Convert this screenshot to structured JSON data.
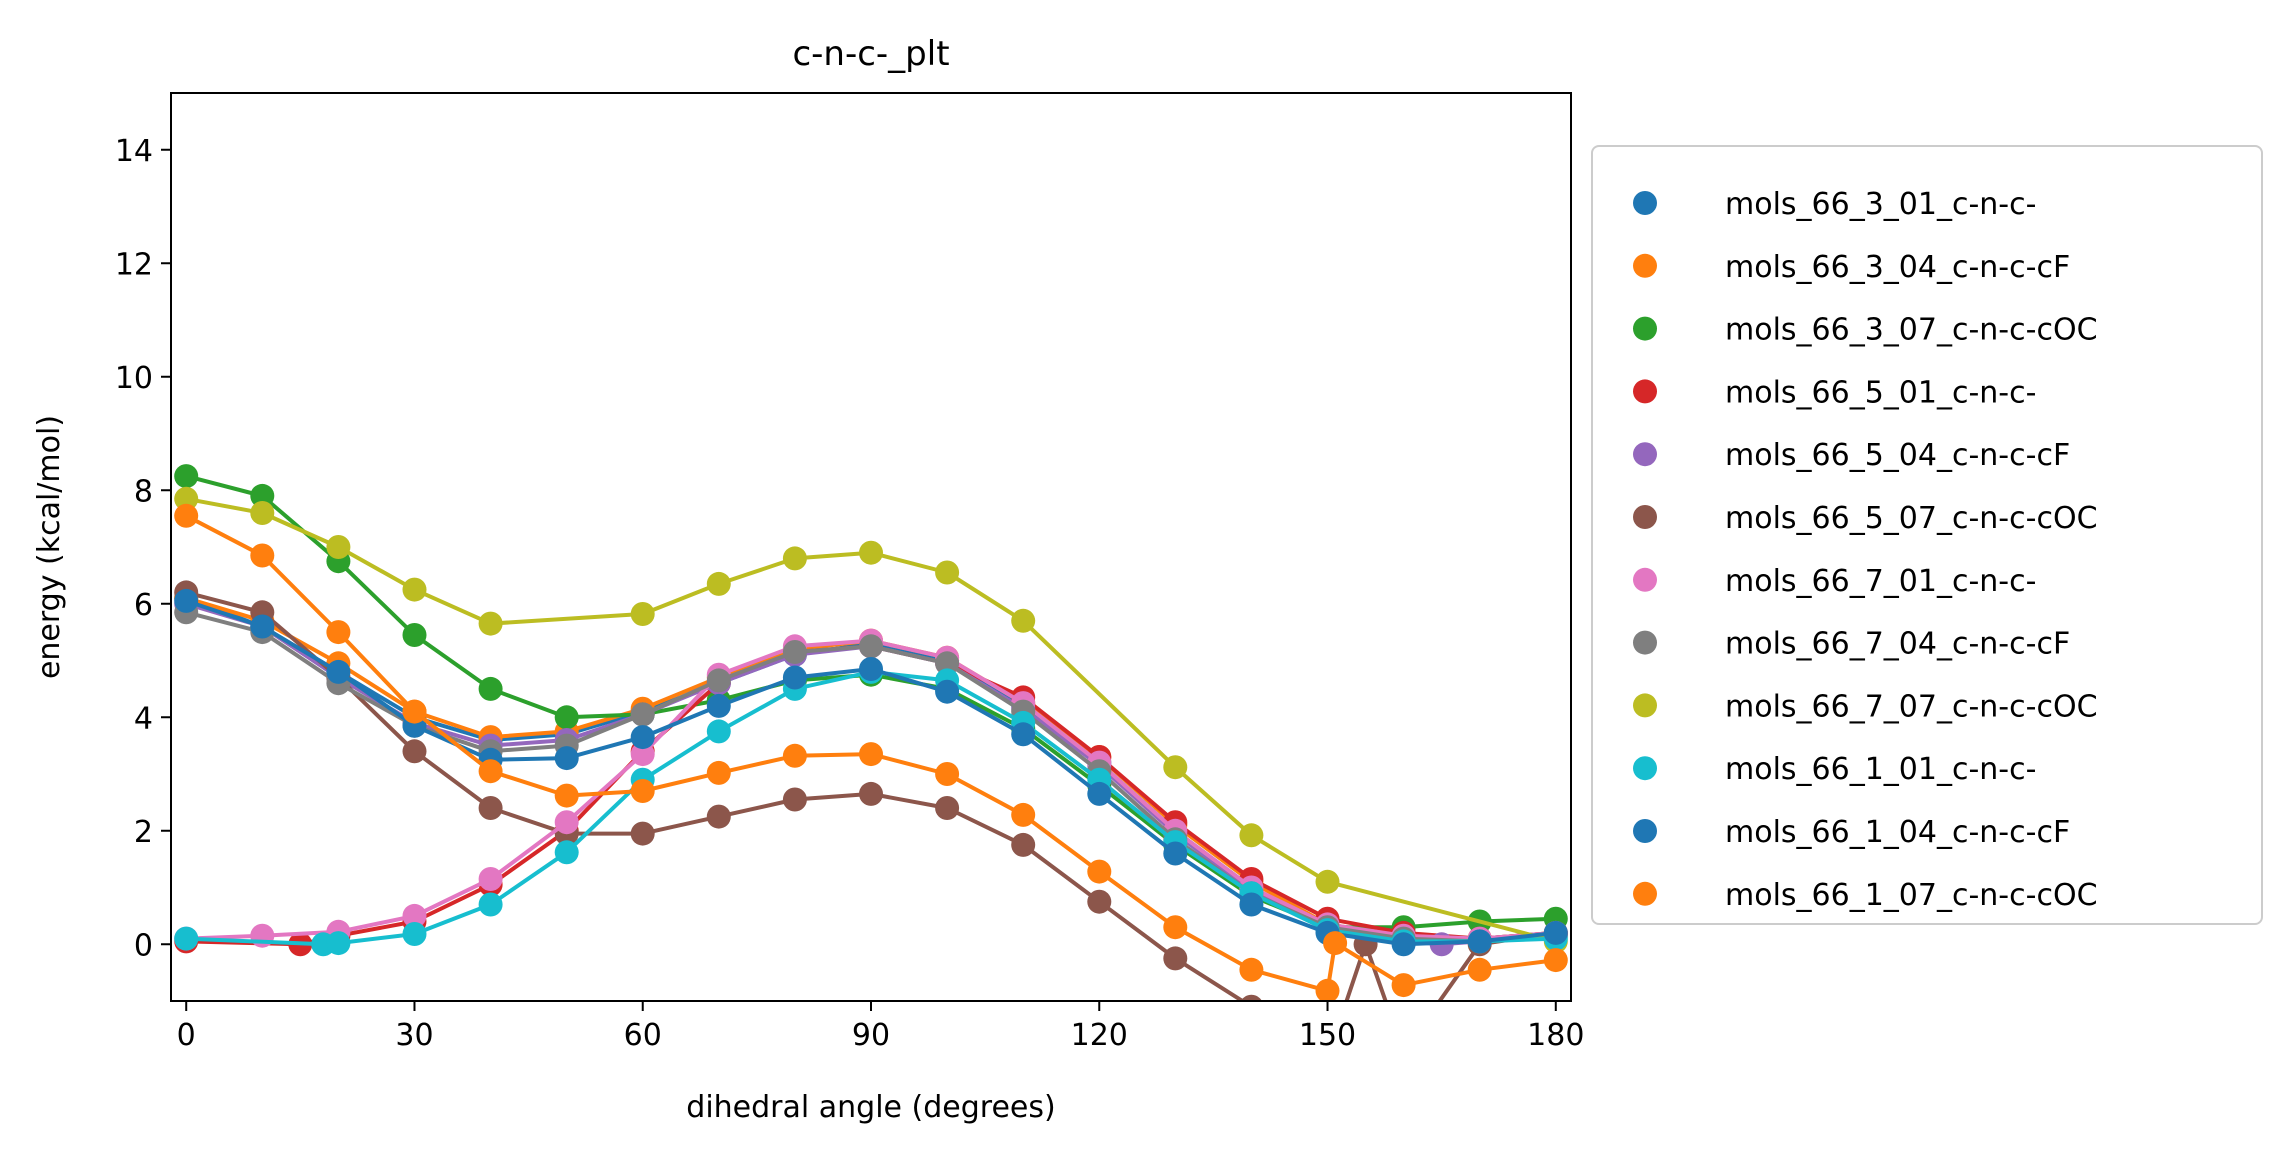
{
  "chart_data": {
    "type": "line",
    "title": "c-n-c-_plt",
    "xlabel": "dihedral angle (degrees)",
    "ylabel": "energy (kcal/mol)",
    "xlim": [
      -2,
      182
    ],
    "ylim": [
      -1,
      15
    ],
    "xticks": [
      0,
      30,
      60,
      90,
      120,
      150,
      180
    ],
    "yticks": [
      0,
      2,
      4,
      6,
      8,
      10,
      12,
      14
    ],
    "grid": false,
    "legend": "outside-right",
    "series": [
      {
        "name": "mols_66_3_01_c-n-c-",
        "color": "#1f77b4",
        "x": [
          0,
          10,
          20,
          30,
          40,
          50,
          60,
          70,
          80,
          90,
          100,
          110,
          120,
          130,
          140,
          150,
          160,
          170,
          180
        ],
        "y": [
          6.1,
          5.6,
          4.8,
          4.0,
          3.6,
          3.7,
          4.1,
          4.6,
          5.1,
          5.3,
          5.0,
          4.2,
          3.2,
          2.0,
          1.0,
          0.3,
          0.1,
          0.1,
          0.2
        ]
      },
      {
        "name": "mols_66_3_04_c-n-c-cF",
        "color": "#ff7f0e",
        "x": [
          0,
          10,
          20,
          30,
          40,
          50,
          60,
          70,
          80,
          90,
          100,
          110,
          120,
          130,
          140,
          150,
          160,
          170,
          180
        ],
        "y": [
          6.1,
          5.7,
          4.95,
          4.1,
          3.65,
          3.75,
          4.15,
          4.7,
          5.2,
          5.35,
          5.05,
          4.25,
          3.3,
          2.1,
          1.1,
          0.35,
          0.15,
          0.1,
          0.2
        ]
      },
      {
        "name": "mols_66_3_07_c-n-c-cOC",
        "color": "#2ca02c",
        "x": [
          0,
          10,
          20,
          30,
          40,
          50,
          60,
          70,
          80,
          90,
          100,
          110,
          120,
          130,
          140,
          150,
          160,
          170,
          180
        ],
        "y": [
          8.25,
          7.9,
          6.75,
          5.45,
          4.5,
          4.0,
          4.05,
          4.3,
          4.65,
          4.75,
          4.5,
          3.8,
          2.8,
          1.75,
          0.85,
          0.3,
          0.3,
          0.4,
          0.45
        ]
      },
      {
        "name": "mols_66_5_01_c-n-c-",
        "color": "#d62728",
        "x": [
          0,
          15,
          20,
          30,
          40,
          50,
          60,
          70,
          80,
          90,
          100,
          110,
          120,
          130,
          140,
          150,
          160,
          170,
          180
        ],
        "y": [
          0.05,
          0.0,
          0.15,
          0.4,
          1.05,
          2.0,
          3.4,
          4.6,
          5.15,
          5.25,
          4.95,
          4.35,
          3.3,
          2.15,
          1.15,
          0.45,
          0.2,
          0.1,
          0.2
        ]
      },
      {
        "name": "mols_66_5_04_c-n-c-cF",
        "color": "#9467bd",
        "x": [
          0,
          10,
          20,
          30,
          40,
          50,
          60,
          70,
          80,
          90,
          100,
          110,
          120,
          130,
          140,
          150,
          160,
          165,
          170,
          180
        ],
        "y": [
          6.0,
          5.6,
          4.7,
          3.9,
          3.5,
          3.6,
          4.05,
          4.6,
          5.1,
          5.25,
          4.95,
          4.15,
          3.15,
          1.95,
          0.95,
          0.3,
          0.05,
          0.0,
          0.05,
          0.15
        ]
      },
      {
        "name": "mols_66_5_07_c-n-c-cOC",
        "color": "#8c564b",
        "x": [
          0,
          10,
          20,
          30,
          40,
          50,
          60,
          70,
          80,
          90,
          100,
          110,
          120,
          130,
          140,
          150,
          155,
          160,
          170,
          180
        ],
        "y": [
          6.2,
          5.85,
          4.7,
          3.4,
          2.4,
          1.95,
          1.95,
          2.25,
          2.55,
          2.65,
          2.4,
          1.75,
          0.75,
          -0.25,
          -1.1,
          -2.0,
          0.0,
          -1.9,
          0.0,
          0.2
        ]
      },
      {
        "name": "mols_66_7_01_c-n-c-",
        "color": "#e377c2",
        "x": [
          0,
          10,
          20,
          30,
          40,
          50,
          60,
          70,
          80,
          90,
          100,
          110,
          120,
          130,
          140,
          150,
          160,
          170,
          180
        ],
        "y": [
          0.1,
          0.15,
          0.22,
          0.5,
          1.15,
          2.15,
          3.35,
          4.75,
          5.25,
          5.35,
          5.05,
          4.25,
          3.2,
          2.0,
          1.0,
          0.35,
          0.15,
          0.1,
          0.2
        ]
      },
      {
        "name": "mols_66_7_04_c-n-c-cF",
        "color": "#7f7f7f",
        "x": [
          0,
          10,
          20,
          30,
          40,
          50,
          60,
          70,
          80,
          90,
          100,
          110,
          120,
          130,
          140,
          150,
          160,
          170,
          180
        ],
        "y": [
          5.85,
          5.5,
          4.6,
          3.85,
          3.4,
          3.5,
          4.05,
          4.65,
          5.15,
          5.25,
          4.95,
          4.1,
          3.05,
          1.85,
          0.9,
          0.3,
          0.1,
          0.05,
          0.15
        ]
      },
      {
        "name": "mols_66_7_07_c-n-c-cOC",
        "color": "#bcbd22",
        "x": [
          0,
          10,
          20,
          30,
          40,
          60,
          70,
          80,
          90,
          100,
          110,
          130,
          140,
          150,
          180
        ],
        "y": [
          7.85,
          7.6,
          7.0,
          6.25,
          5.65,
          5.82,
          6.35,
          6.8,
          6.9,
          6.55,
          5.7,
          3.12,
          1.92,
          1.1,
          0.05
        ]
      },
      {
        "name": "mols_66_1_01_c-n-c-",
        "color": "#17becf",
        "x": [
          0,
          18,
          20,
          30,
          40,
          50,
          60,
          70,
          80,
          90,
          100,
          110,
          120,
          130,
          140,
          150,
          160,
          170,
          180
        ],
        "y": [
          0.1,
          0.0,
          0.02,
          0.18,
          0.7,
          1.62,
          2.9,
          3.75,
          4.5,
          4.8,
          4.65,
          3.9,
          2.9,
          1.8,
          0.9,
          0.25,
          0.05,
          0.05,
          0.1
        ]
      },
      {
        "name": "mols_66_1_04_c-n-c-cF",
        "color": "#1f77b4",
        "x": [
          0,
          10,
          20,
          30,
          40,
          50,
          60,
          70,
          80,
          90,
          100,
          110,
          120,
          130,
          140,
          150,
          160,
          170,
          180
        ],
        "y": [
          6.05,
          5.6,
          4.8,
          3.85,
          3.25,
          3.28,
          3.65,
          4.2,
          4.7,
          4.85,
          4.45,
          3.7,
          2.65,
          1.6,
          0.7,
          0.2,
          0.0,
          0.05,
          0.2
        ]
      },
      {
        "name": "mols_66_1_07_c-n-c-cOC",
        "color": "#ff7f0e",
        "x": [
          0,
          10,
          20,
          30,
          40,
          50,
          60,
          70,
          80,
          90,
          100,
          110,
          120,
          130,
          140,
          150,
          151,
          160,
          170,
          180
        ],
        "y": [
          7.55,
          6.85,
          5.5,
          4.1,
          3.05,
          2.62,
          2.7,
          3.02,
          3.32,
          3.35,
          3.0,
          2.28,
          1.28,
          0.3,
          -0.45,
          -0.82,
          0.02,
          -0.72,
          -0.45,
          -0.28
        ]
      }
    ]
  }
}
